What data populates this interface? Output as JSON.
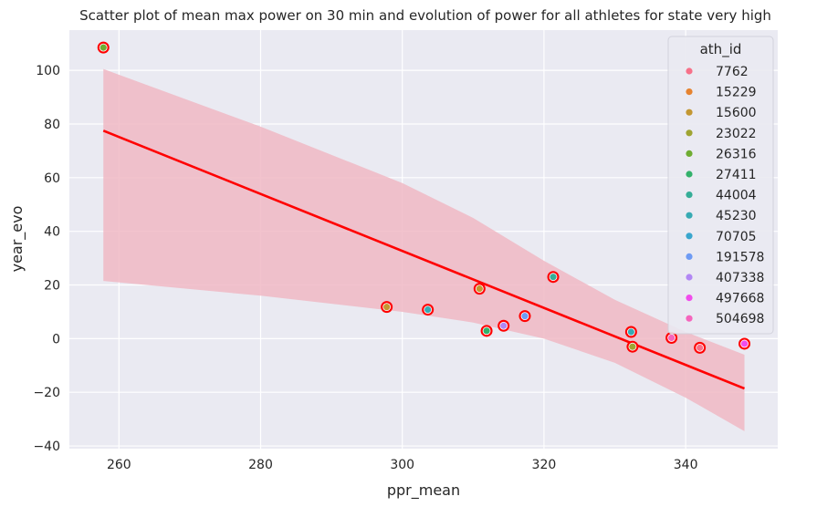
{
  "chart_data": {
    "type": "scatter",
    "title": "Scatter plot of mean max power on 30 min and evolution of power for all athletes for state very high",
    "xlabel": "ppr_mean",
    "ylabel": "year_evo",
    "xlim": [
      253,
      353
    ],
    "ylim": [
      -41,
      115
    ],
    "xticks": [
      260,
      280,
      300,
      320,
      340
    ],
    "yticks": [
      -40,
      -20,
      0,
      20,
      40,
      60,
      80,
      100
    ],
    "xtick_labels": [
      "260",
      "280",
      "300",
      "320",
      "340"
    ],
    "ytick_labels": [
      "−40",
      "−20",
      "0",
      "20",
      "40",
      "60",
      "80",
      "100"
    ],
    "grid": true,
    "background": "#eaeaf2",
    "legend": {
      "title": "ath_id",
      "placement": "top-right",
      "entries": [
        {
          "label": "7762",
          "color": "#f77189"
        },
        {
          "label": "15229",
          "color": "#e6832f"
        },
        {
          "label": "15600",
          "color": "#c39732"
        },
        {
          "label": "23022",
          "color": "#9fa432"
        },
        {
          "label": "26316",
          "color": "#6fac32"
        },
        {
          "label": "27411",
          "color": "#33b16b"
        },
        {
          "label": "44004",
          "color": "#35ad97"
        },
        {
          "label": "45230",
          "color": "#37aab3"
        },
        {
          "label": "70705",
          "color": "#39a6cd"
        },
        {
          "label": "191578",
          "color": "#6e9bf4"
        },
        {
          "label": "407338",
          "color": "#b287f4"
        },
        {
          "label": "497668",
          "color": "#f14cec"
        },
        {
          "label": "504698",
          "color": "#f565bd"
        }
      ]
    },
    "points": [
      {
        "x": 257.8,
        "y": 108.5,
        "color": "#6fac32"
      },
      {
        "x": 297.8,
        "y": 11.8,
        "color": "#c39732"
      },
      {
        "x": 303.6,
        "y": 10.8,
        "color": "#37aab3"
      },
      {
        "x": 310.9,
        "y": 18.6,
        "color": "#c39732"
      },
      {
        "x": 311.9,
        "y": 2.9,
        "color": "#33b16b"
      },
      {
        "x": 314.3,
        "y": 4.8,
        "color": "#b287f4"
      },
      {
        "x": 317.3,
        "y": 8.4,
        "color": "#6e9bf4"
      },
      {
        "x": 321.3,
        "y": 23.0,
        "color": "#35ad97"
      },
      {
        "x": 332.3,
        "y": 2.5,
        "color": "#37aab3"
      },
      {
        "x": 332.5,
        "y": -3.0,
        "color": "#9fa432"
      },
      {
        "x": 338.0,
        "y": 0.3,
        "color": "#f565bd"
      },
      {
        "x": 342.0,
        "y": -3.4,
        "color": "#f77189"
      },
      {
        "x": 348.3,
        "y": -1.9,
        "color": "#f14cec"
      }
    ],
    "highlight_color": "#ff0000",
    "regression": {
      "color": "#ff0000",
      "ci_color": "#f0b8c4",
      "line": [
        {
          "x": 257.8,
          "y": 77.5
        },
        {
          "x": 348.3,
          "y": -18.6
        }
      ],
      "ci": [
        {
          "x": 257.8,
          "lo": 21.5,
          "hi": 100.5
        },
        {
          "x": 280,
          "lo": 16.0,
          "hi": 79.0
        },
        {
          "x": 300,
          "lo": 10.0,
          "hi": 58.0
        },
        {
          "x": 310,
          "lo": 6.0,
          "hi": 45.0
        },
        {
          "x": 320,
          "lo": 0.0,
          "hi": 29.0
        },
        {
          "x": 330,
          "lo": -9.0,
          "hi": 14.5
        },
        {
          "x": 340,
          "lo": -22.0,
          "hi": 2.5
        },
        {
          "x": 348.3,
          "lo": -34.5,
          "hi": -6.0
        }
      ]
    }
  }
}
